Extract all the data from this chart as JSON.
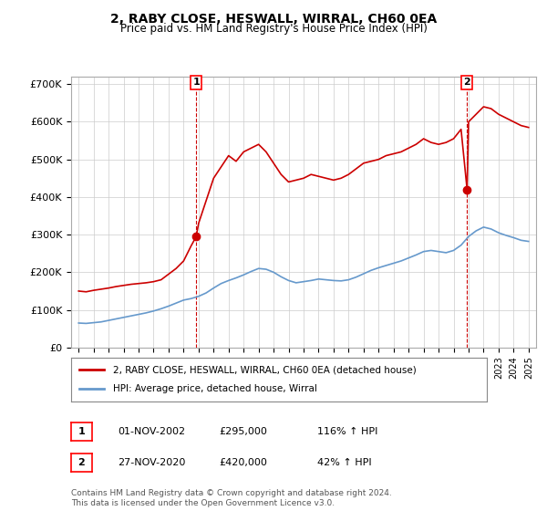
{
  "title": "2, RABY CLOSE, HESWALL, WIRRAL, CH60 0EA",
  "subtitle": "Price paid vs. HM Land Registry's House Price Index (HPI)",
  "ylabel": "",
  "background_color": "#ffffff",
  "plot_bg_color": "#ffffff",
  "grid_color": "#cccccc",
  "red_line_color": "#cc0000",
  "blue_line_color": "#6699cc",
  "sale1_date_num": 2002.84,
  "sale1_price": 295000,
  "sale1_label": "1",
  "sale2_date_num": 2020.9,
  "sale2_price": 420000,
  "sale2_label": "2",
  "ylim": [
    0,
    720000
  ],
  "xlim_start": 1994.5,
  "xlim_end": 2025.5,
  "yticks": [
    0,
    100000,
    200000,
    300000,
    400000,
    500000,
    600000,
    700000
  ],
  "ytick_labels": [
    "£0",
    "£100K",
    "£200K",
    "£300K",
    "£400K",
    "£500K",
    "£600K",
    "£700K"
  ],
  "xticks": [
    1995,
    1996,
    1997,
    1998,
    1999,
    2000,
    2001,
    2002,
    2003,
    2004,
    2005,
    2006,
    2007,
    2008,
    2009,
    2010,
    2011,
    2012,
    2013,
    2014,
    2015,
    2016,
    2017,
    2018,
    2019,
    2020,
    2021,
    2022,
    2023,
    2024,
    2025
  ],
  "legend_line1": "2, RABY CLOSE, HESWALL, WIRRAL, CH60 0EA (detached house)",
  "legend_line2": "HPI: Average price, detached house, Wirral",
  "annotation1_date": "01-NOV-2002",
  "annotation1_price": "£295,000",
  "annotation1_hpi": "116% ↑ HPI",
  "annotation2_date": "27-NOV-2020",
  "annotation2_price": "£420,000",
  "annotation2_hpi": "42% ↑ HPI",
  "footer": "Contains HM Land Registry data © Crown copyright and database right 2024.\nThis data is licensed under the Open Government Licence v3.0.",
  "red_x": [
    1995.0,
    1995.5,
    1996.0,
    1996.5,
    1997.0,
    1997.5,
    1998.0,
    1998.5,
    1999.0,
    1999.5,
    2000.0,
    2000.5,
    2001.0,
    2001.5,
    2002.0,
    2002.5,
    2002.84,
    2003.0,
    2003.5,
    2004.0,
    2004.5,
    2005.0,
    2005.5,
    2006.0,
    2006.5,
    2007.0,
    2007.5,
    2008.0,
    2008.5,
    2009.0,
    2009.5,
    2010.0,
    2010.5,
    2011.0,
    2011.5,
    2012.0,
    2012.5,
    2013.0,
    2013.5,
    2014.0,
    2014.5,
    2015.0,
    2015.5,
    2016.0,
    2016.5,
    2017.0,
    2017.5,
    2018.0,
    2018.5,
    2019.0,
    2019.5,
    2020.0,
    2020.5,
    2020.9,
    2021.0,
    2021.5,
    2022.0,
    2022.5,
    2023.0,
    2023.5,
    2024.0,
    2024.5,
    2025.0
  ],
  "red_y": [
    150000,
    148000,
    152000,
    155000,
    158000,
    162000,
    165000,
    168000,
    170000,
    172000,
    175000,
    180000,
    195000,
    210000,
    230000,
    270000,
    295000,
    330000,
    390000,
    450000,
    480000,
    510000,
    495000,
    520000,
    530000,
    540000,
    520000,
    490000,
    460000,
    440000,
    445000,
    450000,
    460000,
    455000,
    450000,
    445000,
    450000,
    460000,
    475000,
    490000,
    495000,
    500000,
    510000,
    515000,
    520000,
    530000,
    540000,
    555000,
    545000,
    540000,
    545000,
    555000,
    580000,
    420000,
    600000,
    620000,
    640000,
    635000,
    620000,
    610000,
    600000,
    590000,
    585000
  ],
  "blue_x": [
    1995.0,
    1995.5,
    1996.0,
    1996.5,
    1997.0,
    1997.5,
    1998.0,
    1998.5,
    1999.0,
    1999.5,
    2000.0,
    2000.5,
    2001.0,
    2001.5,
    2002.0,
    2002.5,
    2003.0,
    2003.5,
    2004.0,
    2004.5,
    2005.0,
    2005.5,
    2006.0,
    2006.5,
    2007.0,
    2007.5,
    2008.0,
    2008.5,
    2009.0,
    2009.5,
    2010.0,
    2010.5,
    2011.0,
    2011.5,
    2012.0,
    2012.5,
    2013.0,
    2013.5,
    2014.0,
    2014.5,
    2015.0,
    2015.5,
    2016.0,
    2016.5,
    2017.0,
    2017.5,
    2018.0,
    2018.5,
    2019.0,
    2019.5,
    2020.0,
    2020.5,
    2021.0,
    2021.5,
    2022.0,
    2022.5,
    2023.0,
    2023.5,
    2024.0,
    2024.5,
    2025.0
  ],
  "blue_y": [
    65000,
    64000,
    66000,
    68000,
    72000,
    76000,
    80000,
    84000,
    88000,
    92000,
    97000,
    103000,
    110000,
    118000,
    126000,
    130000,
    136000,
    145000,
    158000,
    170000,
    178000,
    185000,
    193000,
    202000,
    210000,
    208000,
    200000,
    188000,
    178000,
    172000,
    175000,
    178000,
    182000,
    180000,
    178000,
    177000,
    180000,
    187000,
    196000,
    205000,
    212000,
    218000,
    224000,
    230000,
    238000,
    246000,
    255000,
    258000,
    255000,
    252000,
    258000,
    272000,
    295000,
    310000,
    320000,
    315000,
    305000,
    298000,
    292000,
    285000,
    282000
  ]
}
